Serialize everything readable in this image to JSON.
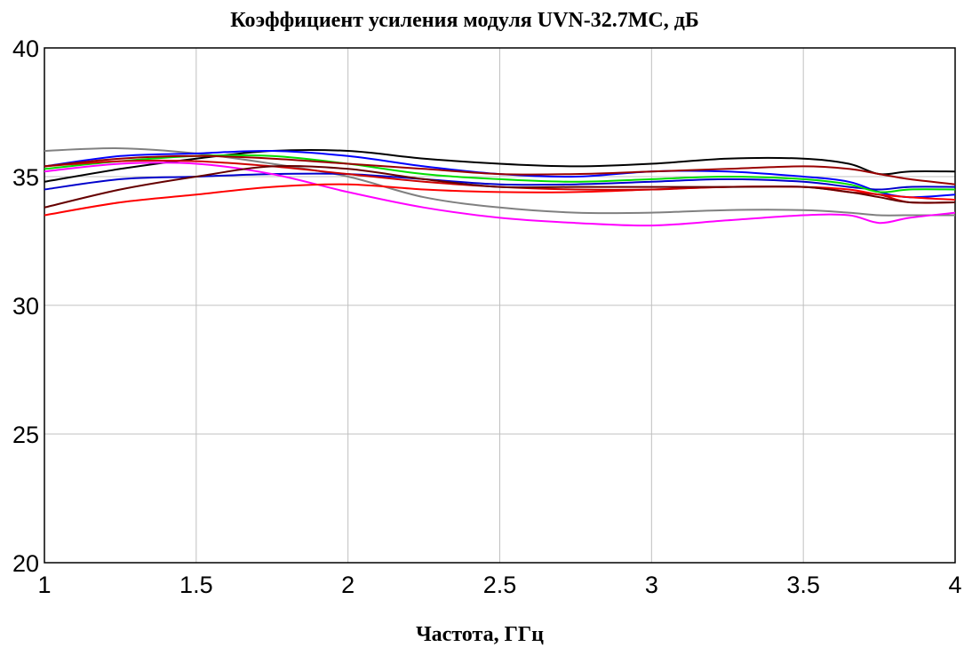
{
  "chart_data": {
    "type": "line",
    "title": "Коэффициент усиления модуля UVN-32.7MC, дБ",
    "xlabel": "Частота, ГГц",
    "ylabel": "",
    "xlim": [
      1,
      4
    ],
    "ylim": [
      20,
      40
    ],
    "x_ticks": [
      "1",
      "1.5",
      "2",
      "2.5",
      "3",
      "3.5",
      "4"
    ],
    "y_ticks": [
      "20",
      "25",
      "30",
      "35",
      "40"
    ],
    "grid": true,
    "legend": "none",
    "x": [
      1.0,
      1.25,
      1.5,
      1.75,
      2.0,
      2.25,
      2.5,
      2.75,
      3.0,
      3.25,
      3.5,
      3.65,
      3.75,
      3.85,
      4.0
    ],
    "series": [
      {
        "color": "#000000",
        "values": [
          34.8,
          35.3,
          35.7,
          36.0,
          36.0,
          35.7,
          35.5,
          35.4,
          35.5,
          35.7,
          35.7,
          35.5,
          35.1,
          35.2,
          35.2
        ]
      },
      {
        "color": "#808080",
        "values": [
          36.0,
          36.1,
          35.9,
          35.5,
          35.0,
          34.2,
          33.8,
          33.6,
          33.6,
          33.7,
          33.7,
          33.6,
          33.5,
          33.5,
          33.5
        ]
      },
      {
        "color": "#0000ff",
        "values": [
          35.4,
          35.8,
          35.9,
          36.0,
          35.8,
          35.4,
          35.1,
          35.0,
          35.2,
          35.2,
          35.0,
          34.8,
          34.4,
          34.2,
          34.3
        ]
      },
      {
        "color": "#0000cc",
        "values": [
          34.5,
          34.9,
          35.0,
          35.1,
          35.1,
          34.9,
          34.7,
          34.7,
          34.8,
          34.9,
          34.8,
          34.6,
          34.5,
          34.6,
          34.6
        ]
      },
      {
        "color": "#00dd00",
        "values": [
          35.3,
          35.6,
          35.8,
          35.8,
          35.5,
          35.1,
          34.9,
          34.8,
          34.9,
          35.0,
          34.9,
          34.7,
          34.4,
          34.5,
          34.5
        ]
      },
      {
        "color": "#ff00ff",
        "values": [
          35.2,
          35.5,
          35.5,
          35.1,
          34.4,
          33.8,
          33.4,
          33.2,
          33.1,
          33.3,
          33.5,
          33.5,
          33.2,
          33.4,
          33.6
        ]
      },
      {
        "color": "#ff0000",
        "values": [
          33.5,
          34.0,
          34.3,
          34.6,
          34.7,
          34.5,
          34.4,
          34.4,
          34.5,
          34.6,
          34.6,
          34.5,
          34.3,
          34.2,
          34.1
        ]
      },
      {
        "color": "#cc0000",
        "values": [
          35.4,
          35.6,
          35.6,
          35.4,
          35.1,
          34.8,
          34.6,
          34.5,
          34.5,
          34.6,
          34.6,
          34.4,
          34.3,
          34.0,
          34.0
        ]
      },
      {
        "color": "#990000",
        "values": [
          35.4,
          35.7,
          35.8,
          35.7,
          35.5,
          35.3,
          35.1,
          35.1,
          35.2,
          35.3,
          35.4,
          35.3,
          35.1,
          34.9,
          34.7
        ]
      },
      {
        "color": "#660000",
        "values": [
          33.8,
          34.5,
          35.0,
          35.4,
          35.3,
          34.9,
          34.6,
          34.6,
          34.6,
          34.6,
          34.6,
          34.4,
          34.2,
          34.0,
          34.0
        ]
      }
    ]
  }
}
